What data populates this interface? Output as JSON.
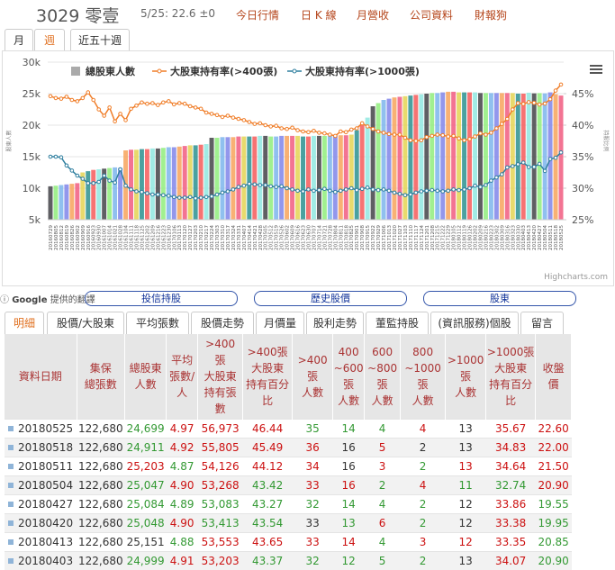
{
  "header": {
    "code_name": "3029 零壹",
    "quote": "5/25: 22.6 ±0",
    "links": [
      "今日行情",
      "日 K 線",
      "月營收",
      "公司資料",
      "財報狗"
    ]
  },
  "period_tabs": [
    "月",
    "週",
    "近五十週"
  ],
  "active_period": 1,
  "chart_data": {
    "type": "combo",
    "y_label": "股東人數",
    "y2_label": "持股比例",
    "credit": "Highcharts.com",
    "categories": [
      "20160729",
      "20160805",
      "20160812",
      "20160819",
      "20160826",
      "20160902",
      "20160909",
      "20160916",
      "20160923",
      "20160930",
      "20161007",
      "20161014",
      "20161021",
      "20161028",
      "20161104",
      "20161111",
      "20161118",
      "20161125",
      "20161202",
      "20161209",
      "20161216",
      "20161223",
      "20161230",
      "20170106",
      "20170113",
      "20170120",
      "20170127",
      "20170203",
      "20170210",
      "20170217",
      "20170224",
      "20170303",
      "20170310",
      "20170317",
      "20170324",
      "20170331",
      "20170407",
      "20170414",
      "20170421",
      "20170428",
      "20170505",
      "20170512",
      "20170519",
      "20170526",
      "20170602",
      "20170609",
      "20170616",
      "20170623",
      "20170630",
      "20170707",
      "20170714",
      "20170721",
      "20170728",
      "20170804",
      "20170811",
      "20170818",
      "20170825",
      "20170901",
      "20170908",
      "20170915",
      "20170922",
      "20170929",
      "20171006",
      "20171013",
      "20171020",
      "20171027",
      "20171103",
      "20171110",
      "20171117",
      "20171124",
      "20171201",
      "20171208",
      "20171215",
      "20171222",
      "20171229",
      "20180105",
      "20180112",
      "20180119",
      "20180126",
      "20180202",
      "20180209",
      "20180216",
      "20180223",
      "20180302",
      "20180309",
      "20180316",
      "20180323",
      "20180330",
      "20180403",
      "20180413",
      "20180420",
      "20180427",
      "20180504",
      "20180511",
      "20180518",
      "20180525"
    ],
    "bar_colors": [
      "#434348",
      "#90ed7d",
      "#7cb5ec",
      "#8085e9",
      "#f7a35c",
      "#f15c80",
      "#e4d354",
      "#2b908f",
      "#f45b5b",
      "#91e8e1"
    ],
    "series": [
      {
        "name": "總股東人數",
        "type": "bar",
        "color": "#aaaaaa",
        "values": [
          10300,
          10400,
          10500,
          10600,
          10700,
          10800,
          12500,
          12700,
          12900,
          13000,
          13100,
          13200,
          13300,
          13200,
          16000,
          16100,
          16100,
          16200,
          16200,
          16300,
          16300,
          16400,
          16500,
          16500,
          16600,
          16700,
          16800,
          16800,
          16900,
          17000,
          18000,
          18000,
          18100,
          18100,
          18100,
          18200,
          18200,
          18200,
          18200,
          18300,
          18300,
          18200,
          18200,
          18300,
          18300,
          18300,
          18300,
          18200,
          18200,
          18300,
          18300,
          18300,
          18300,
          18400,
          18400,
          18400,
          18500,
          19200,
          20000,
          21200,
          23000,
          23500,
          24000,
          24200,
          24400,
          24500,
          24600,
          24700,
          24800,
          24900,
          25000,
          25100,
          25100,
          25200,
          25300,
          25300,
          25200,
          25200,
          25200,
          25200,
          25100,
          25100,
          25100,
          25100,
          25100,
          25100,
          25100,
          25000,
          24999,
          25151,
          25048,
          25084,
          25047,
          25203,
          24911,
          24699
        ]
      },
      {
        "name": "大股東持有率(>400張)",
        "type": "line",
        "axis": "y2",
        "color": "#f07d28",
        "values": [
          44.6,
          44.3,
          44.2,
          44.5,
          44.0,
          43.8,
          44.3,
          45.2,
          44.0,
          42.5,
          41.5,
          42.8,
          40.6,
          41.8,
          40.8,
          42.6,
          43.1,
          43.6,
          43.4,
          43.5,
          43.2,
          43.6,
          43.8,
          43.3,
          43.5,
          43.4,
          43.0,
          42.8,
          42.6,
          42.0,
          41.8,
          41.6,
          41.3,
          41.5,
          41.2,
          41.0,
          40.8,
          40.5,
          40.2,
          40.3,
          40.0,
          39.8,
          39.9,
          39.5,
          39.4,
          39.6,
          39.2,
          39.0,
          38.9,
          39.1,
          38.8,
          38.7,
          38.5,
          38.3,
          39.0,
          38.9,
          39.3,
          39.5,
          40.3,
          39.8,
          39.4,
          39.0,
          38.8,
          38.6,
          38.5,
          38.5,
          38.0,
          37.6,
          37.5,
          37.6,
          38.1,
          38.3,
          38.5,
          38.4,
          38.2,
          38.3,
          37.9,
          37.6,
          37.8,
          38.2,
          38.7,
          38.5,
          38.8,
          39.5,
          40.2,
          41.0,
          42.5,
          43.5,
          43.37,
          43.65,
          43.54,
          43.27,
          43.42,
          44.12,
          45.49,
          46.44
        ]
      },
      {
        "name": "大股東持有率(>1000張)",
        "type": "line",
        "axis": "y2",
        "color": "#2f7f9f",
        "values": [
          35.0,
          35.0,
          34.9,
          33.6,
          32.8,
          32.0,
          31.5,
          30.8,
          30.8,
          31.0,
          32.0,
          31.2,
          30.9,
          33.0,
          30.4,
          29.8,
          29.5,
          29.4,
          29.2,
          29.0,
          29.0,
          28.9,
          28.8,
          28.6,
          28.5,
          28.5,
          28.6,
          28.4,
          28.5,
          28.6,
          28.7,
          29.0,
          29.3,
          29.5,
          29.8,
          30.2,
          30.4,
          30.7,
          30.6,
          30.5,
          30.5,
          30.3,
          30.2,
          30.3,
          30.0,
          29.8,
          29.6,
          29.5,
          29.8,
          29.6,
          29.7,
          29.9,
          29.6,
          29.4,
          29.6,
          29.8,
          30.0,
          29.7,
          29.9,
          30.1,
          29.8,
          29.7,
          29.8,
          29.6,
          29.3,
          29.1,
          28.9,
          29.0,
          29.3,
          29.5,
          29.6,
          29.7,
          29.6,
          29.5,
          29.6,
          29.8,
          29.7,
          29.8,
          30.0,
          30.4,
          30.2,
          30.5,
          31.2,
          31.7,
          32.2,
          33.3,
          33.5,
          33.8,
          34.07,
          33.35,
          33.38,
          33.86,
          32.74,
          34.64,
          34.83,
          35.67
        ]
      }
    ],
    "ylim": [
      5000,
      30000
    ],
    "yticks": [
      {
        "value": 5000,
        "label": "5k"
      },
      {
        "value": 10000,
        "label": "10k"
      },
      {
        "value": 15000,
        "label": "15k"
      },
      {
        "value": 20000,
        "label": "20k"
      },
      {
        "value": 25000,
        "label": "25k"
      },
      {
        "value": 30000,
        "label": "30k"
      }
    ],
    "y2lim": [
      25,
      50
    ],
    "y2ticks": [
      {
        "value": 25,
        "label": "25%"
      },
      {
        "value": 30,
        "label": "30%"
      },
      {
        "value": 35,
        "label": "35%"
      },
      {
        "value": 40,
        "label": "40%"
      },
      {
        "value": 45,
        "label": "45%"
      }
    ],
    "grid": true
  },
  "google": {
    "brand": "Google",
    "text": "提供的翻譯"
  },
  "buttons": [
    "投信持股",
    "歷史股價",
    "股東"
  ],
  "tabs": [
    "明細",
    "股價/大股東",
    "平均張數",
    "股價走勢",
    "月價量",
    "股利走勢",
    "董監持股",
    "(資訊服務)個股",
    "留言"
  ],
  "active_tab": 0,
  "table": {
    "headers": [
      "資料日期",
      "集保\n總張數",
      "總股東\n人數",
      "平均\n張數/\n人",
      ">400\n張\n大股東\n持有張\n數",
      ">400張\n大股東\n持有百分\n比",
      ">400\n張\n人數",
      "400\n~600\n張\n人數",
      "600\n~800\n張\n人數",
      "800\n~1000\n張\n人數",
      ">1000\n張\n人數",
      ">1000張\n大股東\n持有百分\n比",
      "收盤\n價"
    ],
    "rows": [
      [
        "20180525",
        "122,680",
        "24,699",
        "4.97",
        "56,973",
        "46.44",
        "35",
        "14",
        "4",
        "4",
        "13",
        "35.67",
        "22.60"
      ],
      [
        "20180518",
        "122,680",
        "24,911",
        "4.92",
        "55,805",
        "45.49",
        "36",
        "16",
        "5",
        "2",
        "13",
        "34.83",
        "22.00"
      ],
      [
        "20180511",
        "122,680",
        "25,203",
        "4.87",
        "54,126",
        "44.12",
        "34",
        "16",
        "3",
        "2",
        "13",
        "34.64",
        "21.50"
      ],
      [
        "20180504",
        "122,680",
        "25,047",
        "4.90",
        "53,268",
        "43.42",
        "33",
        "16",
        "2",
        "4",
        "11",
        "32.74",
        "20.90"
      ],
      [
        "20180427",
        "122,680",
        "25,084",
        "4.89",
        "53,083",
        "43.27",
        "32",
        "14",
        "4",
        "2",
        "12",
        "33.86",
        "19.55"
      ],
      [
        "20180420",
        "122,680",
        "25,048",
        "4.90",
        "53,413",
        "43.54",
        "33",
        "13",
        "6",
        "2",
        "12",
        "33.38",
        "19.95"
      ],
      [
        "20180413",
        "122,680",
        "25,151",
        "4.88",
        "53,553",
        "43.65",
        "33",
        "14",
        "4",
        "3",
        "12",
        "33.35",
        "20.85"
      ],
      [
        "20180403",
        "122,680",
        "24,999",
        "4.91",
        "53,203",
        "43.37",
        "32",
        "12",
        "5",
        "2",
        "13",
        "34.07",
        "20.90"
      ]
    ],
    "palette": {
      "k": "#333333",
      "r": "#cc1111",
      "g": "#339933"
    },
    "cell_colors": [
      "kkgrrrgggrkrr",
      "kkgrrrrkrkkrr",
      "kkrgrrrkrgrrr",
      "kkgrrgrrgrggr",
      "kkggggggggkrg",
      "kkgrggkgrgkrg",
      "kkkgrrrrgrrrg",
      "kkgrrgggggkrg"
    ]
  }
}
